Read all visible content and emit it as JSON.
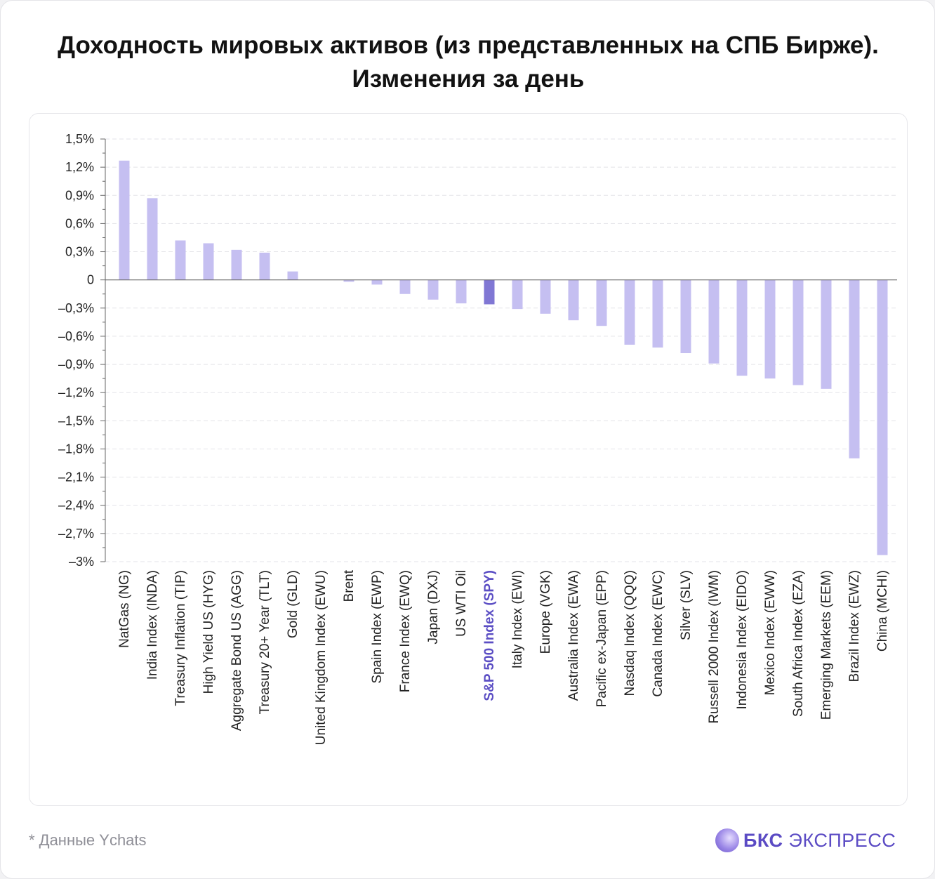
{
  "title": "Доходность мировых активов (из представленных на СПБ Бирже). Изменения за день",
  "footnote": "* Данные Ychats",
  "logo": {
    "brand": "БКС",
    "product": "ЭКСПРЕСС"
  },
  "colors": {
    "bar": "#c5bff1",
    "highlight_bar": "#8077d4",
    "highlight_label": "#5b4ec4",
    "grid": "#e3e3e8",
    "axis": "#666666"
  },
  "chart_data": {
    "type": "bar",
    "title": "Доходность мировых активов (из представленных на СПБ Бирже). Изменения за день",
    "xlabel": "",
    "ylabel": "",
    "ylim": [
      -3.0,
      1.5
    ],
    "y_ticks": [
      1.5,
      1.2,
      0.9,
      0.6,
      0.3,
      0,
      -0.3,
      -0.6,
      -0.9,
      -1.2,
      -1.5,
      -1.8,
      -2.1,
      -2.4,
      -2.7,
      -3.0
    ],
    "y_tick_labels": [
      "1,5%",
      "1,2%",
      "0,9%",
      "0,6%",
      "0,3%",
      "0",
      "–0,3%",
      "–0,6%",
      "–0,9%",
      "–1,2%",
      "–1,5%",
      "–1,8%",
      "–2,1%",
      "–2,4%",
      "–2,7%",
      "–3%"
    ],
    "grid": true,
    "highlight": "S&P 500 Index (SPY)",
    "categories": [
      "NatGas (NG)",
      "India Index (INDA)",
      "Treasury Inflation (TIP)",
      "High Yield US (HYG)",
      "Aggregate Bond US (AGG)",
      "Treasury 20+ Year (TLT)",
      "Gold (GLD)",
      "United Kingdom Index (EWU)",
      "Brent",
      "Spain Index (EWP)",
      "France Index (EWQ)",
      "Japan (DXJ)",
      "US WTI Oil",
      "S&P 500 Index (SPY)",
      "Italy Index (EWI)",
      "Europe (VGK)",
      "Australia Index (EWA)",
      "Pacific ex-Japan (EPP)",
      "Nasdaq Index (QQQ)",
      "Canada Index (EWC)",
      "Silver (SLV)",
      "Russell 2000 Index (IWM)",
      "Indonesia Index (EIDO)",
      "Mexico Index (EWW)",
      "South Africa Index (EZA)",
      "Emerging Markets (EEM)",
      "Brazil Index (EWZ)",
      "China (MCHI)"
    ],
    "values": [
      1.27,
      0.87,
      0.42,
      0.39,
      0.32,
      0.29,
      0.09,
      0.0,
      -0.02,
      -0.05,
      -0.15,
      -0.21,
      -0.25,
      -0.26,
      -0.31,
      -0.36,
      -0.43,
      -0.49,
      -0.69,
      -0.72,
      -0.78,
      -0.89,
      -1.02,
      -1.05,
      -1.12,
      -1.16,
      -1.9,
      -2.93
    ]
  }
}
